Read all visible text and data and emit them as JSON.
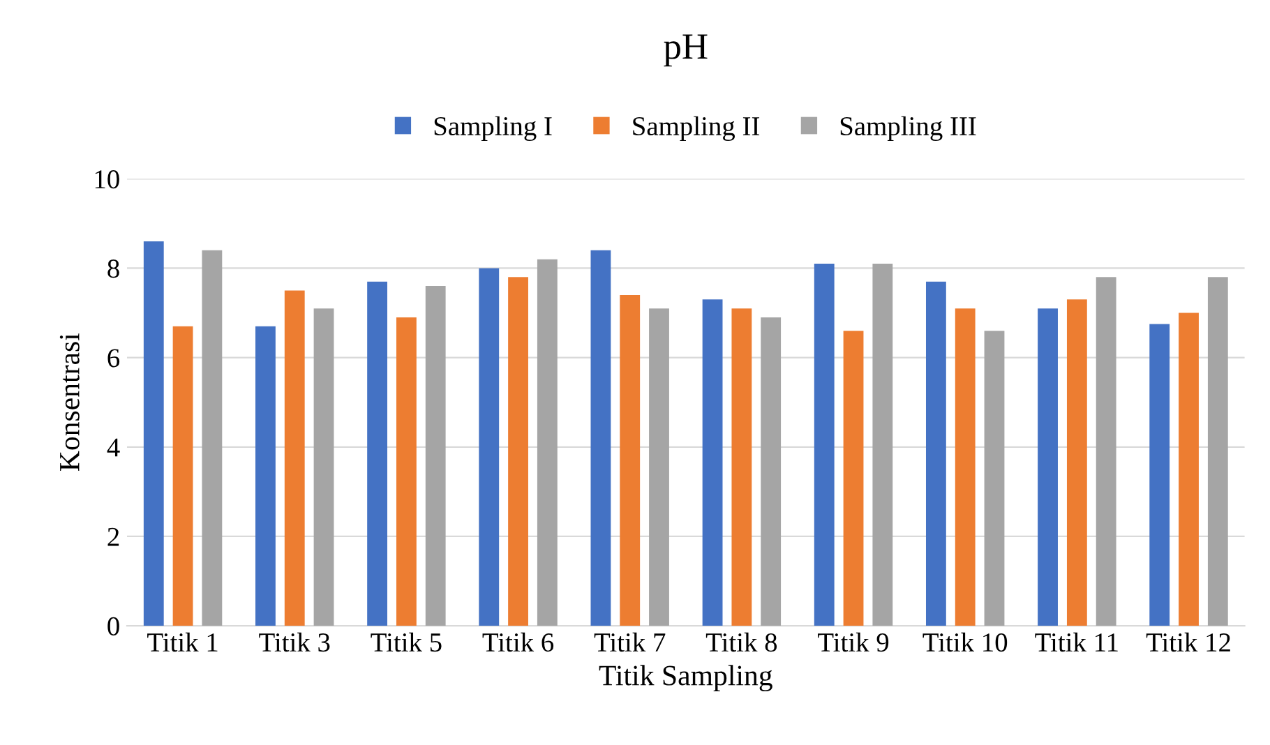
{
  "chart_data": {
    "type": "bar",
    "title": "pH",
    "xlabel": "Titik Sampling",
    "ylabel": "Konsentrasi",
    "categories": [
      "Titik 1",
      "Titik 3",
      "Titik 5",
      "Titik 6",
      "Titik 7",
      "Titik 8",
      "Titik 9",
      "Titik 10",
      "Titik 11",
      "Titik 12"
    ],
    "series": [
      {
        "name": "Sampling I",
        "color": "#4472c4",
        "values": [
          8.6,
          6.7,
          7.7,
          8.0,
          8.4,
          7.3,
          8.1,
          7.7,
          7.1,
          6.75
        ]
      },
      {
        "name": "Sampling II",
        "color": "#ed7d31",
        "values": [
          6.7,
          7.5,
          6.9,
          7.8,
          7.4,
          7.1,
          6.6,
          7.1,
          7.3,
          7.0
        ]
      },
      {
        "name": "Sampling III",
        "color": "#a5a5a5",
        "values": [
          8.4,
          7.1,
          7.6,
          8.2,
          7.1,
          6.9,
          8.1,
          6.6,
          7.8,
          7.8
        ]
      }
    ],
    "ylim": [
      0,
      10
    ],
    "yticks": [
      0,
      2,
      4,
      6,
      8,
      10
    ],
    "grid": "y",
    "legend": "top"
  }
}
